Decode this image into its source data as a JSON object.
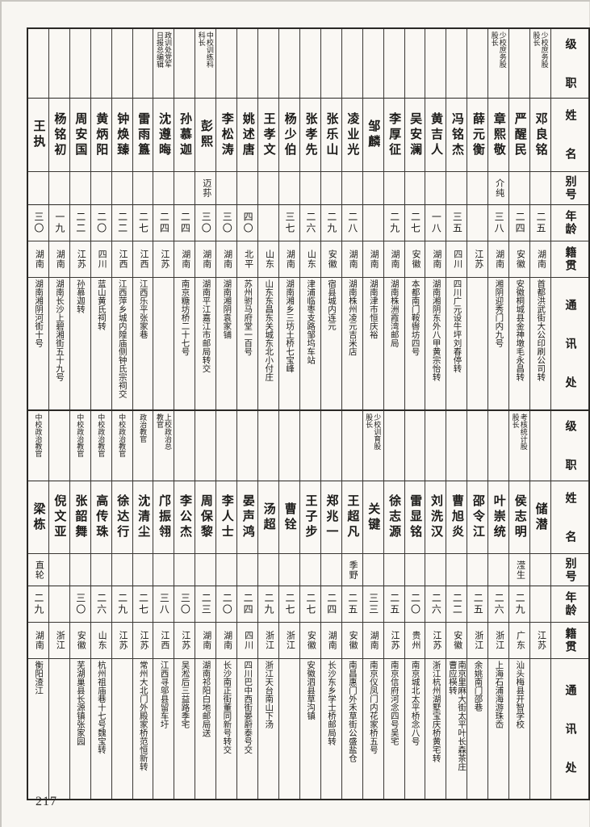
{
  "page_number": "217",
  "headers": {
    "rank": "级　　职",
    "name": "姓　　名",
    "alias": "别号",
    "age": "年龄",
    "native": "籍贯",
    "address": "通　　讯　　处"
  },
  "tables": [
    {
      "entries": [
        {
          "rank": "少校庶务股\n股长",
          "name": "邓良铭",
          "alias": "",
          "age": "二五",
          "native": "湖南",
          "address": "首都洪武街大公印刷公司转"
        },
        {
          "rank": "",
          "name": "严醒民",
          "alias": "",
          "age": "二四",
          "native": "安徽",
          "address": "安徽桐城县金神墩毛永昌转"
        },
        {
          "rank": "少校庶务股\n股长",
          "name": "章熙敬",
          "alias": "介纯",
          "age": "三八",
          "native": "湖南",
          "address": "湘阴迎秀门内九号"
        },
        {
          "rank": "",
          "name": "薛元衡",
          "alias": "",
          "age": "",
          "native": "江苏",
          "address": ""
        },
        {
          "rank": "",
          "name": "冯铭杰",
          "alias": "",
          "age": "三五",
          "native": "四川",
          "address": "四川广元设牛坪刘春停转"
        },
        {
          "rank": "",
          "name": "黄吉人",
          "alias": "",
          "age": "一八",
          "native": "湖南",
          "address": "湖南湘阴东外八甲黄宗怡转"
        },
        {
          "rank": "",
          "name": "吴安澜",
          "alias": "",
          "age": "二七",
          "native": "安徽",
          "address": "本都南门鞍辔坊四号"
        },
        {
          "rank": "",
          "name": "李厚征",
          "alias": "",
          "age": "二九",
          "native": "湖南",
          "address": "湖南株洲霞湾邮局"
        },
        {
          "rank": "",
          "name": "邹麟",
          "alias": "",
          "age": "",
          "native": "湖南",
          "address": "湖南津市恒庆裕"
        },
        {
          "rank": "",
          "name": "凌业光",
          "alias": "",
          "age": "二八",
          "native": "湖南",
          "address": "湖南株州凌元吉米店"
        },
        {
          "rank": "",
          "name": "张乐山",
          "alias": "",
          "age": "二九",
          "native": "安徽",
          "address": "宿县城内连元"
        },
        {
          "rank": "",
          "name": "张孝先",
          "alias": "",
          "age": "二六",
          "native": "山东",
          "address": "津浦临枣支路邹坞车站"
        },
        {
          "rank": "",
          "name": "杨少伯",
          "alias": "",
          "age": "三七",
          "native": "湖南",
          "address": "湖南湘乡三坊土桥七宝峰"
        },
        {
          "rank": "",
          "name": "王孝文",
          "alias": "",
          "age": "",
          "native": "山东",
          "address": "山东东昌东关城东北小付庄"
        },
        {
          "rank": "",
          "name": "姚述唐",
          "alias": "",
          "age": "四〇",
          "native": "北平",
          "address": "苏州驸马府堂一百号"
        },
        {
          "rank": "",
          "name": "李松涛",
          "alias": "",
          "age": "三〇",
          "native": "湖南",
          "address": "湖南湘阴袁家铺"
        },
        {
          "rank": "中校训练科\n科长",
          "name": "彭熙",
          "alias": "迈荪",
          "age": "三〇",
          "native": "湖南",
          "address": "湖南平江嘉江市邮局转交"
        },
        {
          "rank": "",
          "name": "孙慕迦",
          "alias": "",
          "age": "二四",
          "native": "湖南",
          "address": "南京糖坊桥二十七号"
        },
        {
          "rank": "政训处党军\n日报总编辑",
          "name": "沈遵晦",
          "alias": "",
          "age": "二四",
          "native": "江苏",
          "address": ""
        },
        {
          "rank": "",
          "name": "雷雨簋",
          "alias": "",
          "age": "二七",
          "native": "江西",
          "address": "江西乐平张家巷"
        },
        {
          "rank": "",
          "name": "钟焕臻",
          "alias": "",
          "age": "二二",
          "native": "江西",
          "address": "江西萍乡城内隍庙侧钟氏宗祠交"
        },
        {
          "rank": "",
          "name": "黄炳阳",
          "alias": "",
          "age": "二〇",
          "native": "四川",
          "address": "蓝山黄氏祠转"
        },
        {
          "rank": "",
          "name": "周安国",
          "alias": "",
          "age": "二二",
          "native": "江苏",
          "address": "孙慕迦转"
        },
        {
          "rank": "",
          "name": "杨铭初",
          "alias": "",
          "age": "一九",
          "native": "湖南",
          "address": "湖南长沙上碧湘街五十九号"
        },
        {
          "rank": "",
          "name": "王执",
          "alias": "",
          "age": "三〇",
          "native": "湖南",
          "address": "湖南湘阴河街十号"
        }
      ]
    },
    {
      "entries": [
        {
          "rank": "",
          "name": "储潜",
          "alias": "",
          "age": "",
          "native": "江苏",
          "address": ""
        },
        {
          "rank": "考核统计股\n股长",
          "name": "侯志明",
          "alias": "滢生",
          "age": "二九",
          "native": "广东",
          "address": "汕头梅县开智学校"
        },
        {
          "rank": "",
          "name": "叶崇统",
          "alias": "",
          "age": "二六",
          "native": "浙江",
          "address": "上海石浦海游珠岙"
        },
        {
          "rank": "",
          "name": "邵令江",
          "alias": "",
          "age": "二五",
          "native": "浙江",
          "address": "余姚南门邵巷"
        },
        {
          "rank": "",
          "name": "曹旭炎",
          "alias": "",
          "age": "二二",
          "native": "安徽",
          "address": "南京里麻大街太平叶长森茶庄\n曹应楧转"
        },
        {
          "rank": "",
          "name": "刘洗汉",
          "alias": "",
          "age": "二六",
          "native": "江苏",
          "address": "浙江杭州湖墅宝庆桥黄宅转"
        },
        {
          "rank": "",
          "name": "雷显铭",
          "alias": "",
          "age": "二〇",
          "native": "贵州",
          "address": "南京城北太平桥念八号"
        },
        {
          "rank": "",
          "name": "徐志源",
          "alias": "",
          "age": "二五",
          "native": "江苏",
          "address": "南京信府河念四号吴宅"
        },
        {
          "rank": "少校训育股\n股长",
          "name": "关键",
          "alias": "",
          "age": "三三",
          "native": "湖南",
          "address": "南京仪凤门内花家桥五号"
        },
        {
          "rank": "",
          "name": "王超凡",
          "alias": "季野",
          "age": "二五",
          "native": "安徽",
          "address": "南昌惠门外禾草街公盛盐仓"
        },
        {
          "rank": "",
          "name": "郑兆一",
          "alias": "",
          "age": "二四",
          "native": "湖南",
          "address": "长沙东乡学士桥邮局转"
        },
        {
          "rank": "",
          "name": "王子步",
          "alias": "",
          "age": "二七",
          "native": "安徽",
          "address": "安徽泗县草沟镇"
        },
        {
          "rank": "",
          "name": "曹铨",
          "alias": "",
          "age": "二七",
          "native": "浙江",
          "address": ""
        },
        {
          "rank": "",
          "name": "汤超",
          "alias": "",
          "age": "二九",
          "native": "浙江",
          "address": "浙江天台南山下汤"
        },
        {
          "rank": "",
          "name": "晏声鸿",
          "alias": "",
          "age": "二四",
          "native": "四川",
          "address": "四川巴中西街晏蔚泰号交"
        },
        {
          "rank": "",
          "name": "李人士",
          "alias": "",
          "age": "二〇",
          "native": "湖南",
          "address": "长沙南正街董同新号转交"
        },
        {
          "rank": "",
          "name": "周保黎",
          "alias": "",
          "age": "二三",
          "native": "湖南",
          "address": "湖南祁阳白地邮局送"
        },
        {
          "rank": "",
          "name": "李公杰",
          "alias": "",
          "age": "三〇",
          "native": "江苏",
          "address": "吴淞后三益路季宅"
        },
        {
          "rank": "上校政治总\n教官",
          "name": "邝振翎",
          "alias": "",
          "age": "三八",
          "native": "江西",
          "address": "江西寻邬县留车圩"
        },
        {
          "rank": "政治教官",
          "name": "沈清尘",
          "alias": "",
          "age": "二七",
          "native": "江苏",
          "address": "常州大北门外殿家桥范恒新转"
        },
        {
          "rank": "中校政治教官",
          "name": "徐达行",
          "alias": "",
          "age": "二九",
          "native": "江苏",
          "address": ""
        },
        {
          "rank": "中校政治教官",
          "name": "高传珠",
          "alias": "",
          "age": "二六",
          "native": "山东",
          "address": "杭州祖庙巷十七号魏宝转"
        },
        {
          "rank": "中校政治教官",
          "name": "张韶舞",
          "alias": "",
          "age": "三〇",
          "native": "安徽",
          "address": "芜湖巢县长源镇张家园"
        },
        {
          "rank": "",
          "name": "倪文亚",
          "alias": "",
          "age": "",
          "native": "浙江",
          "address": ""
        },
        {
          "rank": "中校政治教官",
          "name": "梁栋",
          "alias": "直轮",
          "age": "二九",
          "native": "湖南",
          "address": "衡阳渣江"
        }
      ]
    }
  ]
}
